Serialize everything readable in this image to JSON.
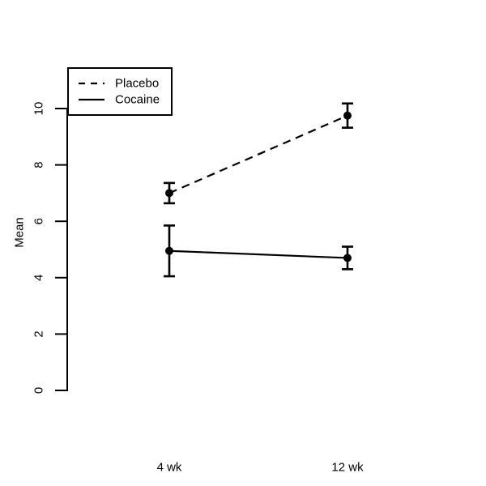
{
  "figure": {
    "background": "#ffffff",
    "ink_color": "#000000"
  },
  "chart_data": {
    "type": "line",
    "title": "",
    "xlabel": "",
    "ylabel": "Mean",
    "categories": [
      "4 wk",
      "12 wk"
    ],
    "yticks": [
      0,
      2,
      4,
      6,
      8,
      10
    ],
    "ylim": [
      0,
      10.4
    ],
    "grid": false,
    "error_bars": true,
    "marker": "filled-circle",
    "legend_position": "top-left",
    "series": [
      {
        "name": "Placebo",
        "line_style": "dashed",
        "values": [
          7.0,
          9.75
        ],
        "errors": [
          0.36,
          0.43
        ]
      },
      {
        "name": "Cocaine",
        "line_style": "solid",
        "values": [
          4.95,
          4.7
        ],
        "errors": [
          0.9,
          0.4
        ]
      }
    ]
  }
}
